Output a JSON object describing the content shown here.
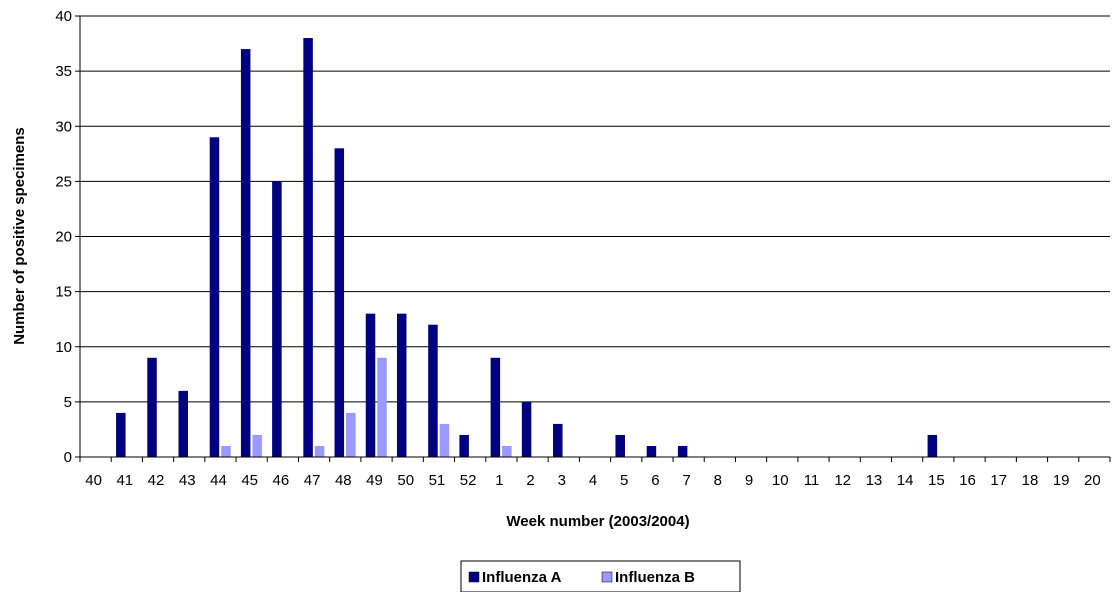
{
  "chart_data": {
    "type": "bar",
    "title": "",
    "xlabel": "Week number (2003/2004)",
    "ylabel": "Number of positive specimens",
    "ylim": [
      0,
      40
    ],
    "yticks": [
      0,
      5,
      10,
      15,
      20,
      25,
      30,
      35,
      40
    ],
    "grid": "horizontal",
    "legend_position": "bottom",
    "categories": [
      "40",
      "41",
      "42",
      "43",
      "44",
      "45",
      "46",
      "47",
      "48",
      "49",
      "50",
      "51",
      "52",
      "1",
      "2",
      "3",
      "4",
      "5",
      "6",
      "7",
      "8",
      "9",
      "10",
      "11",
      "12",
      "13",
      "14",
      "15",
      "16",
      "17",
      "18",
      "19",
      "20"
    ],
    "series": [
      {
        "name": "Influenza A",
        "color": "#000080",
        "values": [
          0,
          4,
          9,
          6,
          29,
          37,
          25,
          38,
          28,
          13,
          13,
          12,
          2,
          9,
          5,
          3,
          0,
          2,
          1,
          1,
          0,
          0,
          0,
          0,
          0,
          0,
          0,
          2,
          0,
          0,
          0,
          0,
          0
        ]
      },
      {
        "name": "Influenza B",
        "color": "#9999FF",
        "values": [
          0,
          0,
          0,
          0,
          1,
          2,
          0,
          1,
          4,
          9,
          0,
          3,
          0,
          1,
          0,
          0,
          0,
          0,
          0,
          0,
          0,
          0,
          0,
          0,
          0,
          0,
          0,
          0,
          0,
          0,
          0,
          0,
          0
        ]
      }
    ]
  }
}
